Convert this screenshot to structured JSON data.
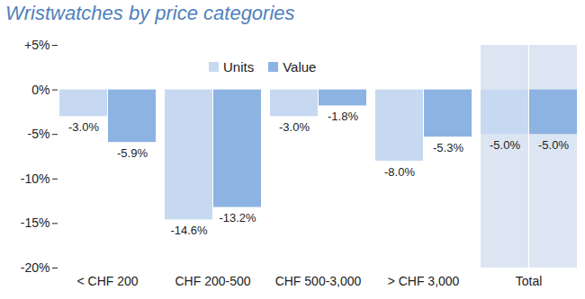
{
  "chart_data": {
    "type": "bar",
    "title": "Wristwatches by price categories",
    "categories": [
      "< CHF 200",
      "CHF 200-500",
      "CHF 500-3,000",
      "> CHF 3,000",
      "Total"
    ],
    "series": [
      {
        "name": "Units",
        "color": "#c6d9f0",
        "values": [
          -3.0,
          -14.6,
          -3.0,
          -8.0,
          -5.0
        ],
        "value_labels": [
          "-3.0%",
          "-14.6%",
          "-3.0%",
          "-8.0%",
          "-5.0%"
        ]
      },
      {
        "name": "Value",
        "color": "#8db3e2",
        "values": [
          -5.9,
          -13.2,
          -1.8,
          -5.3,
          -5.0
        ],
        "value_labels": [
          "-5.9%",
          "-13.2%",
          "-1.8%",
          "-5.3%",
          "-5.0%"
        ]
      }
    ],
    "ylim": [
      -20,
      5
    ],
    "yticks": [
      {
        "value": 5,
        "label": "+5%"
      },
      {
        "value": 0,
        "label": "0%"
      },
      {
        "value": -5,
        "label": "-5%"
      },
      {
        "value": -10,
        "label": "-10%"
      },
      {
        "value": -15,
        "label": "-15%"
      },
      {
        "value": -20,
        "label": "-20%"
      }
    ],
    "data_labels": true,
    "legend": "top"
  }
}
